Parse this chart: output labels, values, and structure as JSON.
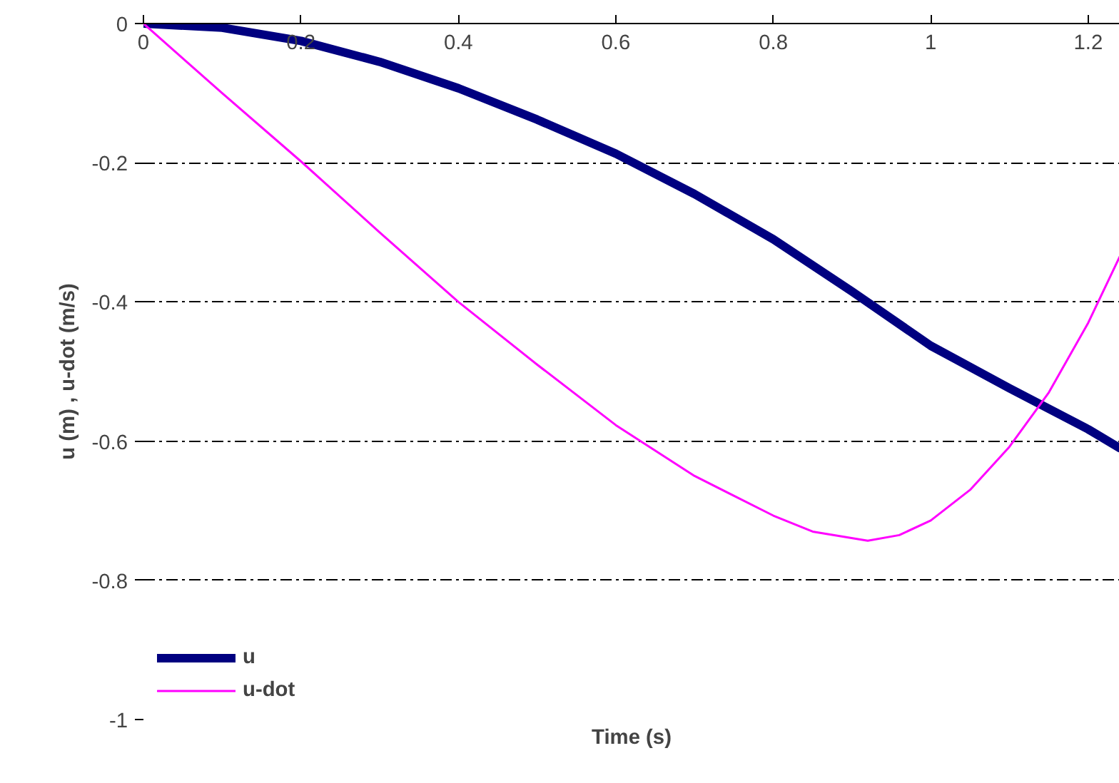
{
  "chart_data": {
    "type": "line",
    "xlabel": "Time (s)",
    "ylabel": "u (m) , u-dot (m/s)",
    "x": [
      0,
      0.1,
      0.2,
      0.3,
      0.4,
      0.5,
      0.6,
      0.7,
      0.8,
      0.9,
      1.0,
      1.1,
      1.2,
      1.24
    ],
    "series": [
      {
        "name": "u",
        "color": "#000080",
        "values": [
          0,
          -0.006,
          -0.025,
          -0.055,
          -0.093,
          -0.138,
          -0.187,
          -0.245,
          -0.31,
          -0.385,
          -0.463,
          -0.524,
          -0.583,
          -0.61
        ]
      },
      {
        "name": "u-dot",
        "color": "#ff00ff",
        "x": [
          0,
          0.1,
          0.2,
          0.3,
          0.4,
          0.5,
          0.6,
          0.7,
          0.8,
          0.85,
          0.92,
          0.96,
          1.0,
          1.05,
          1.1,
          1.15,
          1.2,
          1.24
        ],
        "values": [
          0,
          -0.1,
          -0.198,
          -0.3,
          -0.4,
          -0.49,
          -0.577,
          -0.65,
          -0.707,
          -0.73,
          -0.743,
          -0.735,
          -0.714,
          -0.67,
          -0.608,
          -0.53,
          -0.43,
          -0.335
        ]
      }
    ],
    "xlim": [
      0,
      1.24
    ],
    "ylim": [
      -1,
      0
    ],
    "xticks": [
      0,
      0.2,
      0.4,
      0.6,
      0.8,
      1,
      1.2
    ],
    "yticks": [
      -1,
      -0.8,
      -0.6,
      -0.4,
      -0.2,
      0
    ],
    "grid": "y",
    "legend": "bottom left",
    "marker": "none",
    "line_style": "solid"
  }
}
